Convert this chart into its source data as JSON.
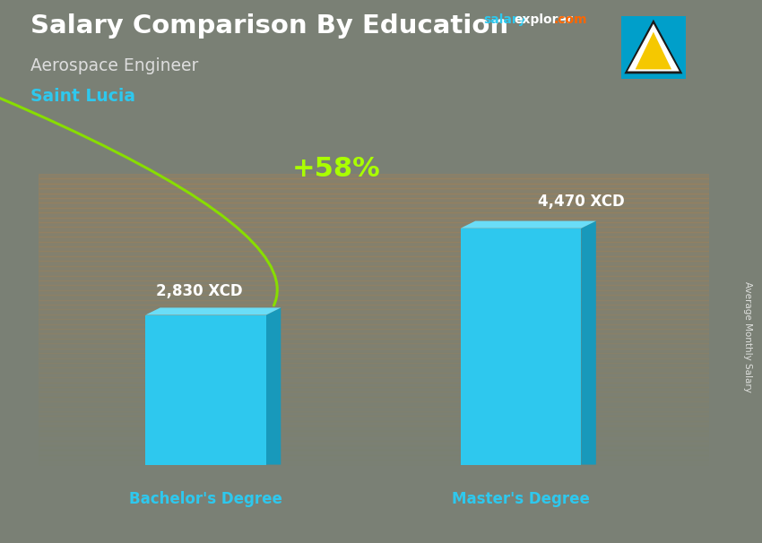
{
  "title": "Salary Comparison By Education",
  "subtitle": "Aerospace Engineer",
  "country": "Saint Lucia",
  "categories": [
    "Bachelor's Degree",
    "Master's Degree"
  ],
  "values": [
    2830,
    4470
  ],
  "labels": [
    "2,830 XCD",
    "4,470 XCD"
  ],
  "pct_change": "+58%",
  "bar_color_face": "#2EC8EE",
  "bar_color_dark": "#1899BB",
  "bar_color_top": "#6ADDF7",
  "ylabel_rotated": "Average Monthly Salary",
  "xlabel_color": "#2EC8EE",
  "title_color": "#FFFFFF",
  "subtitle_color": "#DDDDDD",
  "country_color": "#2EC8EE",
  "pct_color": "#AAFF00",
  "arrow_color": "#88DD00",
  "bg_top_color": "#8A8070",
  "bg_bottom_color": "#5A6055",
  "salaryexplorer_salary_color": "#2EC8EE",
  "salaryexplorer_explorer_color": "#FFFFFF",
  "salaryexplorer_com_color": "#FF6600",
  "value_label_color": "#FFFFFF",
  "ylim_max": 5500,
  "bar_positions": [
    0.25,
    0.72
  ],
  "bar_width": 0.18
}
